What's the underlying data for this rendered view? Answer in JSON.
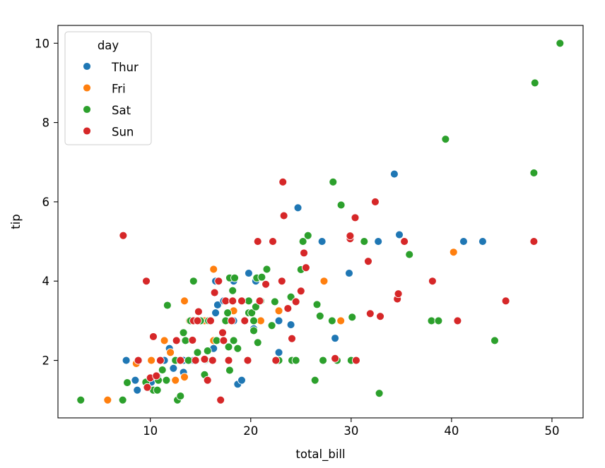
{
  "chart_data": {
    "type": "scatter",
    "title": "",
    "xlabel": "total_bill",
    "ylabel": "tip",
    "xlim": [
      0.8,
      53.1
    ],
    "ylim": [
      0.55,
      10.45
    ],
    "xticks": [
      10,
      20,
      30,
      40,
      50
    ],
    "yticks": [
      2,
      4,
      6,
      8,
      10
    ],
    "xtick_labels": [
      "10",
      "20",
      "30",
      "40",
      "50"
    ],
    "ytick_labels": [
      "2",
      "4",
      "6",
      "8",
      "10"
    ],
    "grid": false,
    "legend": {
      "title": "day",
      "placement": "top-left",
      "entries": [
        "Thur",
        "Fri",
        "Sat",
        "Sun"
      ]
    },
    "series": [
      {
        "name": "Thur",
        "color": "#1f77b4",
        "points": [
          [
            7.6,
            2.0
          ],
          [
            8.5,
            1.5
          ],
          [
            8.7,
            1.25
          ],
          [
            10.1,
            1.45
          ],
          [
            10.7,
            1.6
          ],
          [
            11.4,
            2.0
          ],
          [
            11.9,
            2.3
          ],
          [
            12.3,
            1.8
          ],
          [
            12.5,
            2.0
          ],
          [
            12.6,
            2.5
          ],
          [
            13.0,
            2.0
          ],
          [
            13.3,
            2.0
          ],
          [
            13.3,
            1.7
          ],
          [
            14.0,
            2.0
          ],
          [
            14.3,
            2.0
          ],
          [
            15.0,
            3.0
          ],
          [
            15.5,
            2.0
          ],
          [
            16.3,
            2.3
          ],
          [
            16.5,
            3.2
          ],
          [
            16.5,
            4.0
          ],
          [
            16.7,
            3.4
          ],
          [
            17.3,
            3.5
          ],
          [
            18.3,
            3.0
          ],
          [
            18.3,
            4.0
          ],
          [
            18.7,
            1.4
          ],
          [
            19.1,
            1.5
          ],
          [
            19.4,
            3.0
          ],
          [
            19.8,
            4.2
          ],
          [
            20.3,
            2.8
          ],
          [
            20.5,
            4.0
          ],
          [
            21.0,
            3.0
          ],
          [
            22.8,
            2.2
          ],
          [
            22.8,
            3.0
          ],
          [
            24.0,
            2.9
          ],
          [
            24.7,
            5.85
          ],
          [
            27.1,
            5.0
          ],
          [
            28.4,
            2.56
          ],
          [
            29.8,
            4.2
          ],
          [
            32.7,
            5.0
          ],
          [
            34.3,
            6.7
          ],
          [
            34.8,
            5.17
          ],
          [
            41.2,
            5.0
          ],
          [
            43.1,
            5.0
          ]
        ]
      },
      {
        "name": "Fri",
        "color": "#ff7f0e",
        "points": [
          [
            5.75,
            1.0
          ],
          [
            8.6,
            1.92
          ],
          [
            10.1,
            2.0
          ],
          [
            11.4,
            2.5
          ],
          [
            12.0,
            2.2
          ],
          [
            12.5,
            1.5
          ],
          [
            13.4,
            3.5
          ],
          [
            13.4,
            1.58
          ],
          [
            13.9,
            3.0
          ],
          [
            15.4,
            3.0
          ],
          [
            15.9,
            3.0
          ],
          [
            16.3,
            2.5
          ],
          [
            16.3,
            4.3
          ],
          [
            18.3,
            3.25
          ],
          [
            21.0,
            3.0
          ],
          [
            22.8,
            3.25
          ],
          [
            27.3,
            4.0
          ],
          [
            28.97,
            3.0
          ],
          [
            40.2,
            4.73
          ]
        ]
      },
      {
        "name": "Sat",
        "color": "#2ca02c",
        "points": [
          [
            3.07,
            1.0
          ],
          [
            7.25,
            1.0
          ],
          [
            7.7,
            1.44
          ],
          [
            9.55,
            1.45
          ],
          [
            10.3,
            1.25
          ],
          [
            10.7,
            1.25
          ],
          [
            10.8,
            1.5
          ],
          [
            11.2,
            1.76
          ],
          [
            11.6,
            1.5
          ],
          [
            11.7,
            3.39
          ],
          [
            12.5,
            2.0
          ],
          [
            12.7,
            1.0
          ],
          [
            13.0,
            1.1
          ],
          [
            13.3,
            2.7
          ],
          [
            13.5,
            2.5
          ],
          [
            13.8,
            2.0
          ],
          [
            14.0,
            3.0
          ],
          [
            14.3,
            4.0
          ],
          [
            14.7,
            2.2
          ],
          [
            15.0,
            3.0
          ],
          [
            15.4,
            1.64
          ],
          [
            15.5,
            2.02
          ],
          [
            15.7,
            2.24
          ],
          [
            15.8,
            3.0
          ],
          [
            16.2,
            2.0
          ],
          [
            16.6,
            2.5
          ],
          [
            17.5,
            3.0
          ],
          [
            17.7,
            3.2
          ],
          [
            17.8,
            2.34
          ],
          [
            17.9,
            1.75
          ],
          [
            17.9,
            4.08
          ],
          [
            18.2,
            3.76
          ],
          [
            18.3,
            2.5
          ],
          [
            18.4,
            4.08
          ],
          [
            18.7,
            2.3
          ],
          [
            19.8,
            3.5
          ],
          [
            19.8,
            3.2
          ],
          [
            20.1,
            3.2
          ],
          [
            20.3,
            2.75
          ],
          [
            20.3,
            3.0
          ],
          [
            20.5,
            3.35
          ],
          [
            20.6,
            4.08
          ],
          [
            20.7,
            2.45
          ],
          [
            20.9,
            3.5
          ],
          [
            21.0,
            3.5
          ],
          [
            21.1,
            4.1
          ],
          [
            21.6,
            4.3
          ],
          [
            22.1,
            2.88
          ],
          [
            22.4,
            3.48
          ],
          [
            22.8,
            2.0
          ],
          [
            24.1,
            2.0
          ],
          [
            24.0,
            3.6
          ],
          [
            24.5,
            2.0
          ],
          [
            25.0,
            4.29
          ],
          [
            25.2,
            5.0
          ],
          [
            25.7,
            5.15
          ],
          [
            26.4,
            1.5
          ],
          [
            26.6,
            3.41
          ],
          [
            26.9,
            3.12
          ],
          [
            27.2,
            2.0
          ],
          [
            28.1,
            3.0
          ],
          [
            28.2,
            6.5
          ],
          [
            28.6,
            2.0
          ],
          [
            29.0,
            5.92
          ],
          [
            30.0,
            2.0
          ],
          [
            30.1,
            3.09
          ],
          [
            31.3,
            5.0
          ],
          [
            32.8,
            1.17
          ],
          [
            35.8,
            4.67
          ],
          [
            38.0,
            3.0
          ],
          [
            38.7,
            3.0
          ],
          [
            39.4,
            7.58
          ],
          [
            44.3,
            2.5
          ],
          [
            48.2,
            6.73
          ],
          [
            48.3,
            9.0
          ],
          [
            50.8,
            10.0
          ]
        ]
      },
      {
        "name": "Sun",
        "color": "#d62728",
        "points": [
          [
            7.3,
            5.15
          ],
          [
            8.8,
            2.0
          ],
          [
            9.6,
            4.0
          ],
          [
            9.7,
            1.32
          ],
          [
            10.0,
            1.56
          ],
          [
            10.3,
            2.6
          ],
          [
            10.6,
            1.61
          ],
          [
            11.0,
            2.0
          ],
          [
            12.6,
            2.5
          ],
          [
            13.0,
            2.0
          ],
          [
            14.2,
            2.51
          ],
          [
            14.3,
            3.0
          ],
          [
            14.5,
            2.0
          ],
          [
            14.7,
            3.0
          ],
          [
            14.8,
            3.23
          ],
          [
            15.4,
            2.03
          ],
          [
            15.7,
            1.5
          ],
          [
            16.0,
            3.0
          ],
          [
            16.2,
            2.0
          ],
          [
            16.4,
            3.71
          ],
          [
            16.8,
            4.0
          ],
          [
            17.0,
            1.0
          ],
          [
            17.2,
            2.7
          ],
          [
            17.3,
            2.5
          ],
          [
            17.5,
            3.5
          ],
          [
            17.8,
            2.0
          ],
          [
            18.1,
            3.0
          ],
          [
            18.2,
            3.5
          ],
          [
            19.1,
            3.5
          ],
          [
            19.4,
            3.0
          ],
          [
            19.7,
            2.0
          ],
          [
            20.7,
            5.0
          ],
          [
            20.9,
            3.5
          ],
          [
            21.5,
            3.92
          ],
          [
            22.2,
            5.0
          ],
          [
            22.5,
            2.0
          ],
          [
            23.1,
            4.0
          ],
          [
            23.2,
            6.5
          ],
          [
            23.3,
            5.65
          ],
          [
            23.7,
            3.31
          ],
          [
            24.1,
            2.55
          ],
          [
            24.5,
            3.48
          ],
          [
            25.0,
            3.75
          ],
          [
            25.3,
            4.71
          ],
          [
            25.5,
            4.34
          ],
          [
            28.4,
            2.05
          ],
          [
            29.9,
            5.07
          ],
          [
            29.9,
            5.14
          ],
          [
            30.4,
            5.6
          ],
          [
            30.5,
            2.0
          ],
          [
            31.7,
            4.5
          ],
          [
            31.9,
            3.18
          ],
          [
            32.4,
            6.0
          ],
          [
            32.9,
            3.11
          ],
          [
            34.6,
            3.55
          ],
          [
            34.7,
            3.68
          ],
          [
            35.3,
            5.0
          ],
          [
            38.1,
            4.0
          ],
          [
            40.6,
            3.0
          ],
          [
            45.4,
            3.5
          ],
          [
            48.2,
            5.0
          ]
        ]
      }
    ]
  }
}
